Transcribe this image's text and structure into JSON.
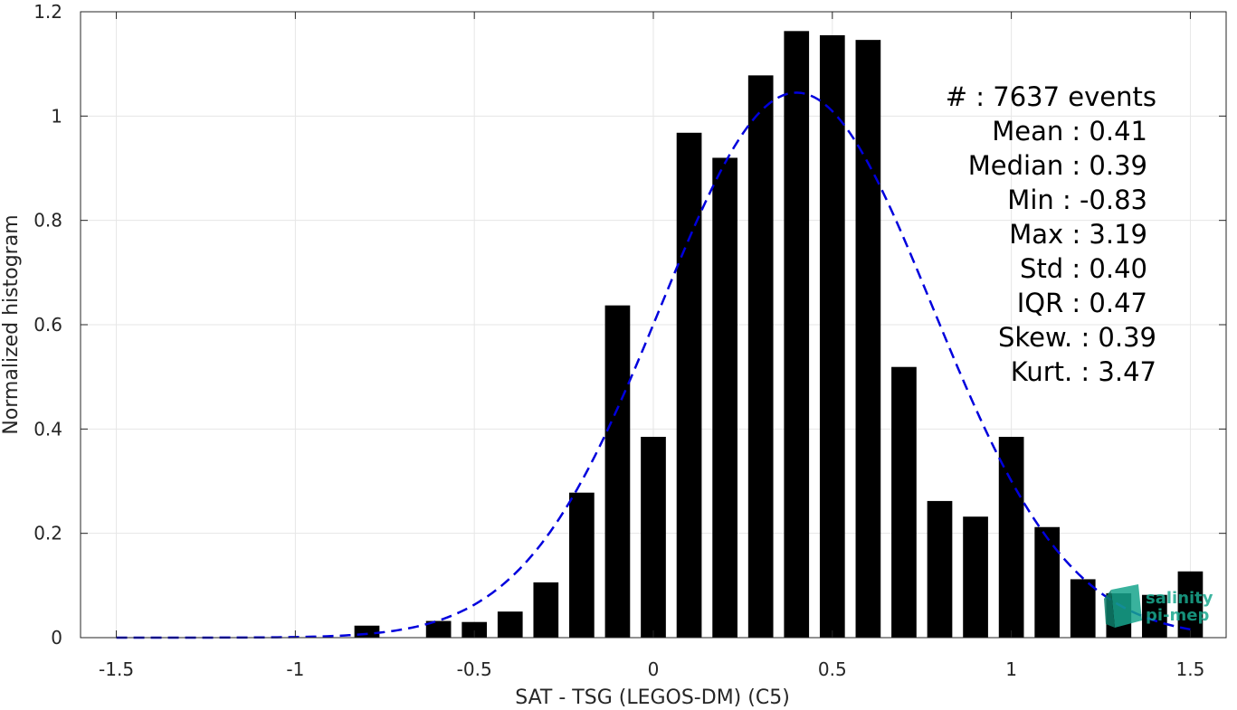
{
  "chart_data": {
    "type": "bar",
    "title": "",
    "xlabel": "SAT - TSG (LEGOS-DM) (C5)",
    "ylabel": "Normalized histogram",
    "xlim": [
      -1.6,
      1.6
    ],
    "ylim": [
      0,
      1.2
    ],
    "xticks": [
      -1.5,
      -1,
      -0.5,
      0,
      0.5,
      1,
      1.5
    ],
    "xtick_labels": [
      "-1.5",
      "-1",
      "-0.5",
      "0",
      "0.5",
      "1",
      "1.5"
    ],
    "yticks": [
      0,
      0.2,
      0.4,
      0.6,
      0.8,
      1,
      1.2
    ],
    "ytick_labels": [
      "0",
      "0.2",
      "0.4",
      "0.6",
      "0.8",
      "1",
      "1.2"
    ],
    "grid": true,
    "bar_color": "#000000",
    "bar_width": 0.07,
    "bars": [
      {
        "x": -0.8,
        "y": 0.023
      },
      {
        "x": -0.6,
        "y": 0.032
      },
      {
        "x": -0.5,
        "y": 0.03
      },
      {
        "x": -0.4,
        "y": 0.05
      },
      {
        "x": -0.3,
        "y": 0.106
      },
      {
        "x": -0.2,
        "y": 0.278
      },
      {
        "x": -0.1,
        "y": 0.637
      },
      {
        "x": 0.0,
        "y": 0.385
      },
      {
        "x": 0.1,
        "y": 0.968
      },
      {
        "x": 0.2,
        "y": 0.92
      },
      {
        "x": 0.3,
        "y": 1.078
      },
      {
        "x": 0.4,
        "y": 1.163
      },
      {
        "x": 0.5,
        "y": 1.155
      },
      {
        "x": 0.6,
        "y": 1.146
      },
      {
        "x": 0.7,
        "y": 0.519
      },
      {
        "x": 0.8,
        "y": 0.262
      },
      {
        "x": 0.9,
        "y": 0.232
      },
      {
        "x": 1.0,
        "y": 0.385
      },
      {
        "x": 1.1,
        "y": 0.212
      },
      {
        "x": 1.2,
        "y": 0.112
      },
      {
        "x": 1.3,
        "y": 0.085
      },
      {
        "x": 1.4,
        "y": 0.082
      },
      {
        "x": 1.5,
        "y": 0.127
      }
    ],
    "fit": {
      "type": "gaussian",
      "style": "dashed",
      "color": "#0000dd",
      "mean": 0.4,
      "std": 0.38,
      "peak": 1.045,
      "x_range": [
        -1.5,
        1.5
      ]
    }
  },
  "stats": [
    "#  : 7637 events",
    "Mean : 0.41",
    "Median : 0.39",
    "Min : -0.83",
    "Max : 3.19",
    "Std : 0.40",
    "IQR : 0.47",
    "Skew. : 0.39",
    "Kurt. : 3.47"
  ],
  "logo": {
    "line1": "salinity",
    "line2": "pi-mep",
    "color": "#1aa88f"
  }
}
